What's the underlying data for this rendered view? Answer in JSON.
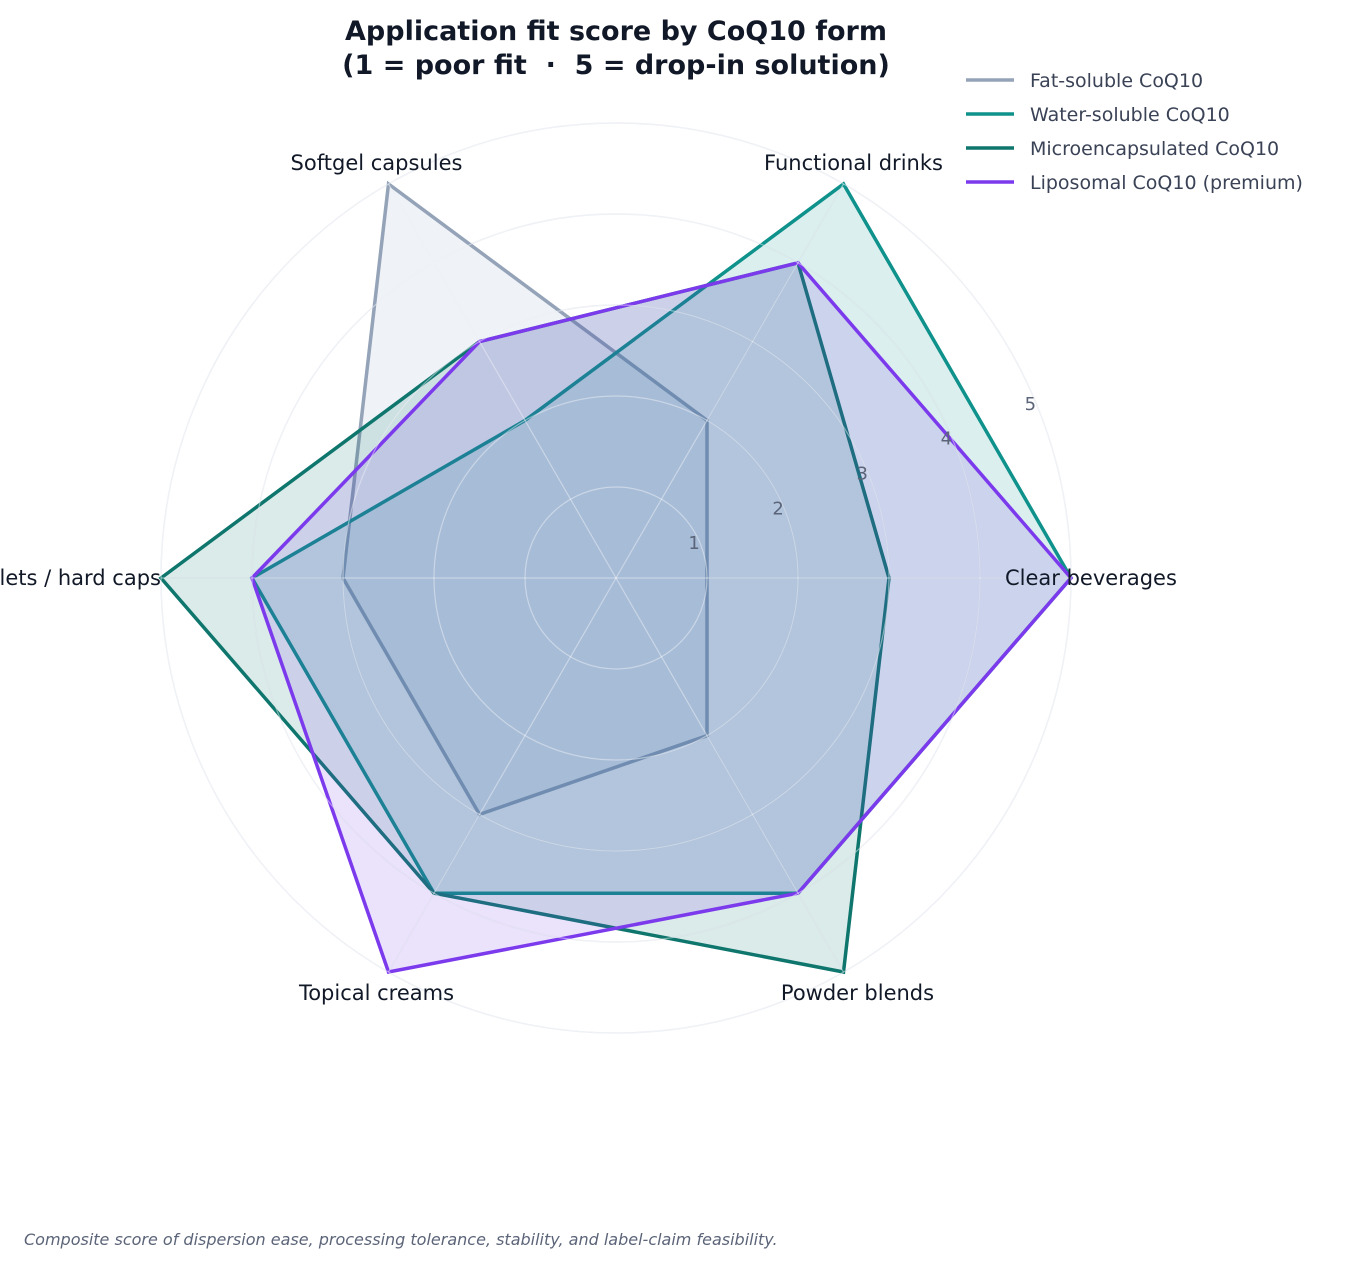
{
  "chart_data": {
    "type": "radar",
    "title_line1": "Application fit score by CoQ10 form",
    "title_line2": "(1 = poor fit  ·  5 = drop-in solution)",
    "categories": [
      "Clear beverages",
      "Functional drinks",
      "Softgel capsules",
      "Tablets / hard caps",
      "Topical creams",
      "Powder blends"
    ],
    "radial_ticks": [
      "1",
      "2",
      "3",
      "4",
      "5"
    ],
    "rlim": [
      0,
      5
    ],
    "grid": true,
    "legend_position": "top-right",
    "series": [
      {
        "name": "Fat-soluble CoQ10",
        "values": [
          1,
          2,
          5,
          3,
          3,
          2
        ],
        "color": "#94a3b8",
        "fill": "#e5e9f1",
        "fill_opacity": 0.6
      },
      {
        "name": "Water-soluble CoQ10",
        "values": [
          5,
          5,
          2,
          4,
          4,
          4
        ],
        "color": "#0f928c",
        "fill": "#0f928c",
        "fill_opacity": 0.15
      },
      {
        "name": "Microencapsulated CoQ10",
        "values": [
          3,
          4,
          3,
          5,
          4,
          5
        ],
        "color": "#0f766e",
        "fill": "#0f766e",
        "fill_opacity": 0.15
      },
      {
        "name": "Liposomal CoQ10 (premium)",
        "values": [
          5,
          4,
          3,
          4,
          5,
          4
        ],
        "color": "#7c3aed",
        "fill": "#7c3aed",
        "fill_opacity": 0.15
      }
    ],
    "footnote": "Composite score of dispersion ease, processing tolerance, stability, and label-claim feasibility."
  }
}
